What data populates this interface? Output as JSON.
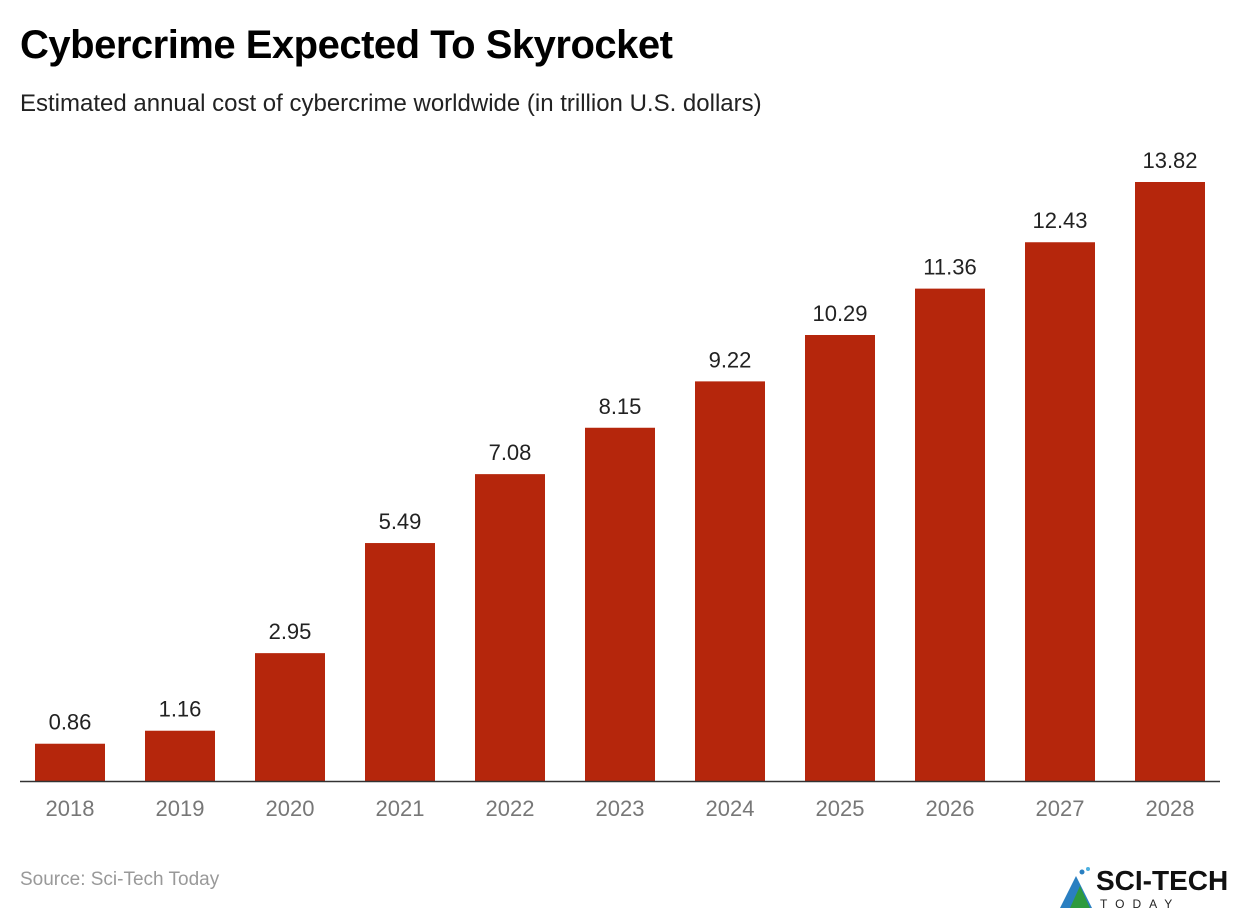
{
  "title": "Cybercrime Expected To Skyrocket",
  "subtitle": "Estimated annual cost of cybercrime worldwide (in trillion U.S. dollars)",
  "source": "Source: Sci-Tech Today",
  "logo": {
    "main": "SCI-TECH",
    "sub": "TODAY"
  },
  "colors": {
    "bar": "#b5260c",
    "axis": "#333333",
    "tick_label": "#777777",
    "data_label": "#222222"
  },
  "chart_data": {
    "type": "bar",
    "title": "Cybercrime Expected To Skyrocket",
    "xlabel": "",
    "ylabel": "",
    "ylim": [
      0,
      13.82
    ],
    "grid": false,
    "categories": [
      "2018",
      "2019",
      "2020",
      "2021",
      "2022",
      "2023",
      "2024",
      "2025",
      "2026",
      "2027",
      "2028"
    ],
    "values": [
      0.86,
      1.16,
      2.95,
      5.49,
      7.08,
      8.15,
      9.22,
      10.29,
      11.36,
      12.43,
      13.82
    ],
    "labels": [
      "0.86",
      "1.16",
      "2.95",
      "5.49",
      "7.08",
      "8.15",
      "9.22",
      "10.29",
      "11.36",
      "12.43",
      "13.82"
    ]
  }
}
